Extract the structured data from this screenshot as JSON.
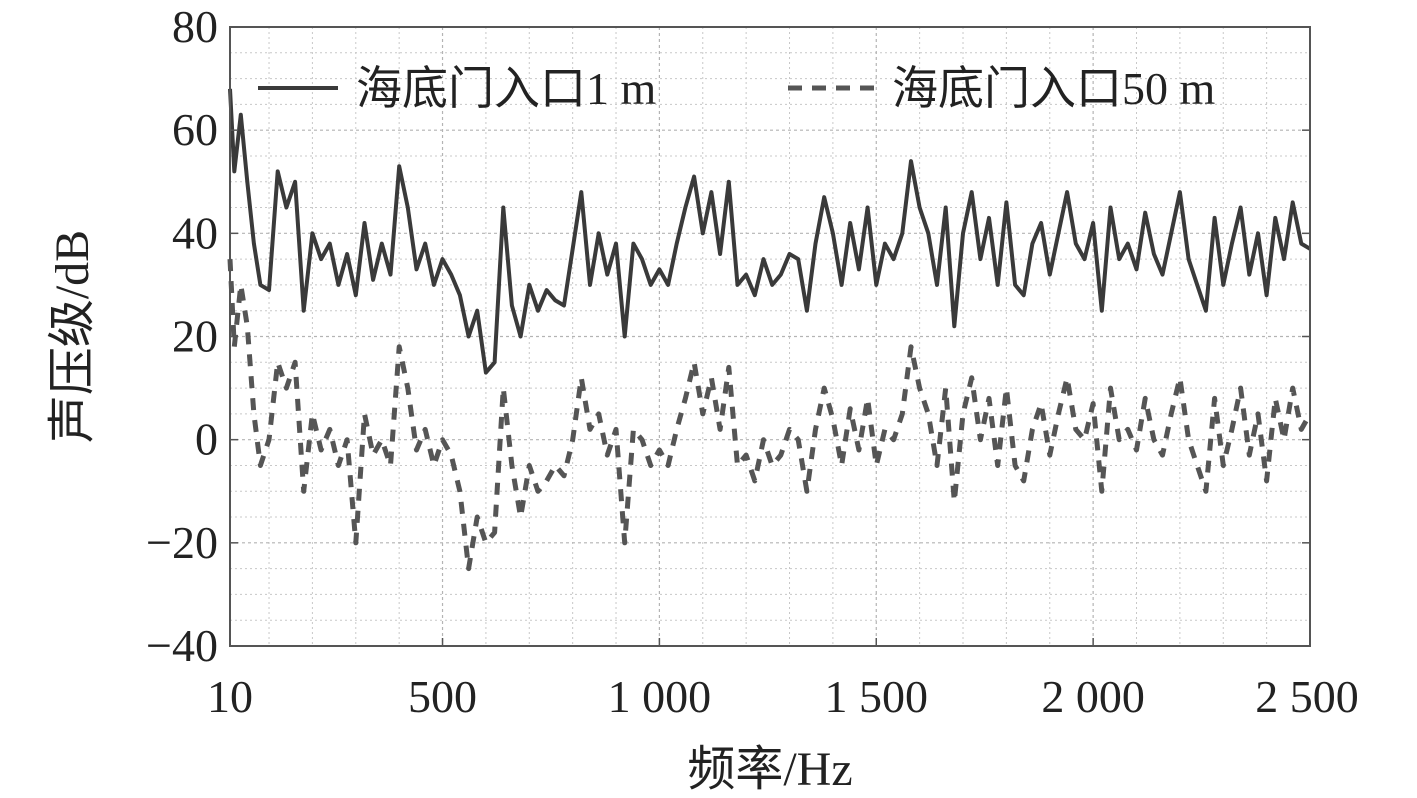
{
  "chart_data": {
    "type": "line",
    "xlabel": "频率/Hz",
    "ylabel": "声压级/dB",
    "xlim": [
      10,
      2500
    ],
    "ylim": [
      -40,
      80
    ],
    "xticks": [
      10,
      500,
      1000,
      1500,
      2000,
      2500
    ],
    "xtick_labels": [
      "10",
      "500",
      "1 000",
      "1 500",
      "2 000",
      "2 500"
    ],
    "yticks": [
      -40,
      -20,
      0,
      20,
      40,
      60,
      80
    ],
    "ytick_labels": [
      "−40",
      "−20",
      "0",
      "20",
      "40",
      "60",
      "80"
    ],
    "grid": true,
    "legend_position": "top",
    "series": [
      {
        "name": "海底门入口1 m",
        "style": "solid",
        "color": "#3a3a3a",
        "x": [
          10,
          20,
          35,
          50,
          65,
          80,
          100,
          120,
          140,
          160,
          180,
          200,
          220,
          240,
          260,
          280,
          300,
          320,
          340,
          360,
          380,
          400,
          420,
          440,
          460,
          480,
          500,
          520,
          540,
          560,
          580,
          600,
          620,
          640,
          660,
          680,
          700,
          720,
          740,
          760,
          780,
          800,
          820,
          840,
          860,
          880,
          900,
          920,
          940,
          960,
          980,
          1000,
          1020,
          1040,
          1060,
          1080,
          1100,
          1120,
          1140,
          1160,
          1180,
          1200,
          1220,
          1240,
          1260,
          1280,
          1300,
          1320,
          1340,
          1360,
          1380,
          1400,
          1420,
          1440,
          1460,
          1480,
          1500,
          1520,
          1540,
          1560,
          1580,
          1600,
          1620,
          1640,
          1660,
          1680,
          1700,
          1720,
          1740,
          1760,
          1780,
          1800,
          1820,
          1840,
          1860,
          1880,
          1900,
          1920,
          1940,
          1960,
          1980,
          2000,
          2020,
          2040,
          2060,
          2080,
          2100,
          2120,
          2140,
          2160,
          2180,
          2200,
          2220,
          2240,
          2260,
          2280,
          2300,
          2320,
          2340,
          2360,
          2380,
          2400,
          2420,
          2440,
          2460,
          2480,
          2500
        ],
        "values": [
          68,
          52,
          63,
          50,
          38,
          30,
          29,
          52,
          45,
          50,
          25,
          40,
          35,
          38,
          30,
          36,
          28,
          42,
          31,
          38,
          32,
          53,
          45,
          33,
          38,
          30,
          35,
          32,
          28,
          20,
          25,
          13,
          15,
          45,
          26,
          20,
          30,
          25,
          29,
          27,
          26,
          37,
          48,
          30,
          40,
          32,
          38,
          20,
          38,
          35,
          30,
          33,
          30,
          38,
          45,
          51,
          40,
          48,
          36,
          50,
          30,
          32,
          28,
          35,
          30,
          32,
          36,
          35,
          25,
          38,
          47,
          40,
          30,
          42,
          33,
          45,
          30,
          38,
          35,
          40,
          54,
          45,
          40,
          30,
          45,
          22,
          40,
          48,
          35,
          43,
          30,
          46,
          30,
          28,
          38,
          42,
          32,
          40,
          48,
          38,
          35,
          42,
          25,
          45,
          35,
          38,
          33,
          44,
          36,
          32,
          40,
          48,
          35,
          30,
          25,
          43,
          30,
          38,
          45,
          32,
          40,
          28,
          43,
          35,
          46,
          38,
          37
        ]
      },
      {
        "name": "海底门入口50 m",
        "style": "dashed",
        "color": "#555555",
        "x": [
          10,
          20,
          35,
          50,
          65,
          80,
          100,
          120,
          140,
          160,
          180,
          200,
          220,
          240,
          260,
          280,
          300,
          320,
          340,
          360,
          380,
          400,
          420,
          440,
          460,
          480,
          500,
          520,
          540,
          560,
          580,
          600,
          620,
          640,
          660,
          680,
          700,
          720,
          740,
          760,
          780,
          800,
          820,
          840,
          860,
          880,
          900,
          920,
          940,
          960,
          980,
          1000,
          1020,
          1040,
          1060,
          1080,
          1100,
          1120,
          1140,
          1160,
          1180,
          1200,
          1220,
          1240,
          1260,
          1280,
          1300,
          1320,
          1340,
          1360,
          1380,
          1400,
          1420,
          1440,
          1460,
          1480,
          1500,
          1520,
          1540,
          1560,
          1580,
          1600,
          1620,
          1640,
          1660,
          1680,
          1700,
          1720,
          1740,
          1760,
          1780,
          1800,
          1820,
          1840,
          1860,
          1880,
          1900,
          1920,
          1940,
          1960,
          1980,
          2000,
          2020,
          2040,
          2060,
          2080,
          2100,
          2120,
          2140,
          2160,
          2180,
          2200,
          2220,
          2240,
          2260,
          2280,
          2300,
          2320,
          2340,
          2360,
          2380,
          2400,
          2420,
          2440,
          2460,
          2480,
          2500
        ],
        "values": [
          35,
          18,
          30,
          22,
          5,
          -5,
          0,
          15,
          10,
          15,
          -10,
          5,
          -2,
          2,
          -5,
          0,
          -20,
          5,
          -3,
          0,
          -5,
          18,
          10,
          -2,
          2,
          -5,
          0,
          -3,
          -10,
          -25,
          -15,
          -20,
          -18,
          10,
          -5,
          -15,
          -5,
          -10,
          -8,
          -5,
          -7,
          0,
          12,
          2,
          5,
          -3,
          2,
          -20,
          2,
          0,
          -5,
          -2,
          -5,
          2,
          8,
          15,
          5,
          12,
          2,
          14,
          -5,
          -3,
          -8,
          0,
          -5,
          -3,
          2,
          0,
          -10,
          2,
          10,
          4,
          -5,
          6,
          -2,
          8,
          -5,
          2,
          0,
          5,
          18,
          10,
          5,
          -5,
          10,
          -12,
          5,
          12,
          0,
          8,
          -5,
          10,
          -5,
          -8,
          2,
          7,
          -3,
          5,
          12,
          2,
          0,
          7,
          -10,
          10,
          0,
          2,
          -2,
          8,
          0,
          -3,
          5,
          12,
          0,
          -5,
          -10,
          8,
          -5,
          2,
          10,
          -3,
          5,
          -8,
          8,
          0,
          10,
          2,
          5
        ]
      }
    ]
  }
}
